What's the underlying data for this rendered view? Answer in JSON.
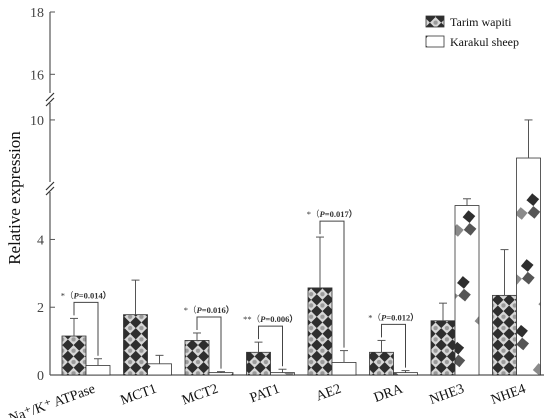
{
  "chart_data": {
    "type": "bar",
    "title": "",
    "xlabel": "",
    "ylabel": "Relative expression",
    "categories": [
      "Na⁺/K⁺ ATPase",
      "MCT1",
      "MCT2",
      "PAT1",
      "AE2",
      "DRA",
      "NHE3",
      "NHE4"
    ],
    "series": [
      {
        "name": "Tarim wapiti",
        "pattern": "checker-dark",
        "values": [
          1.15,
          1.78,
          1.02,
          0.67,
          2.57,
          0.67,
          1.6,
          2.35
        ],
        "errors": [
          0.52,
          1.02,
          0.22,
          0.3,
          1.5,
          0.35,
          0.52,
          1.35
        ]
      },
      {
        "name": "Karakul sheep",
        "pattern": "white-dark-fade",
        "values": [
          0.28,
          0.33,
          0.07,
          0.07,
          0.37,
          0.07,
          5.0,
          8.65
        ],
        "errors": [
          0.2,
          0.25,
          0.03,
          0.1,
          0.35,
          0.06,
          0.2,
          1.35
        ]
      }
    ],
    "y_axis": {
      "broken": true,
      "segments": [
        {
          "range": [
            0,
            5.4
          ],
          "ticks": [
            0,
            2,
            4
          ]
        },
        {
          "range": [
            7.8,
            10.6
          ],
          "ticks": [
            10
          ]
        },
        {
          "range": [
            15.4,
            18
          ],
          "ticks": [
            16,
            18
          ]
        }
      ],
      "tick_labels": [
        "0",
        "2",
        "4",
        "10",
        "16",
        "18"
      ]
    },
    "significance": [
      {
        "category": "Na⁺/K⁺ ATPase",
        "stars": "*",
        "p_label": "P",
        "p_value": "=0.014"
      },
      {
        "category": "MCT2",
        "stars": "*",
        "p_label": "P",
        "p_value": "=0.016"
      },
      {
        "category": "PAT1",
        "stars": "**",
        "p_label": "P",
        "p_value": "=0.006"
      },
      {
        "category": "AE2",
        "stars": "*",
        "p_label": "P",
        "p_value": "=0.017"
      },
      {
        "category": "DRA",
        "stars": "*",
        "p_label": "P",
        "p_value": "=0.012"
      }
    ],
    "legend": {
      "position": "top-right"
    },
    "grid": false,
    "colors": {
      "bar_dark": "#3a3a3a",
      "bar_light": "#ffffff",
      "axis": "#555555",
      "text": "#111111"
    }
  }
}
